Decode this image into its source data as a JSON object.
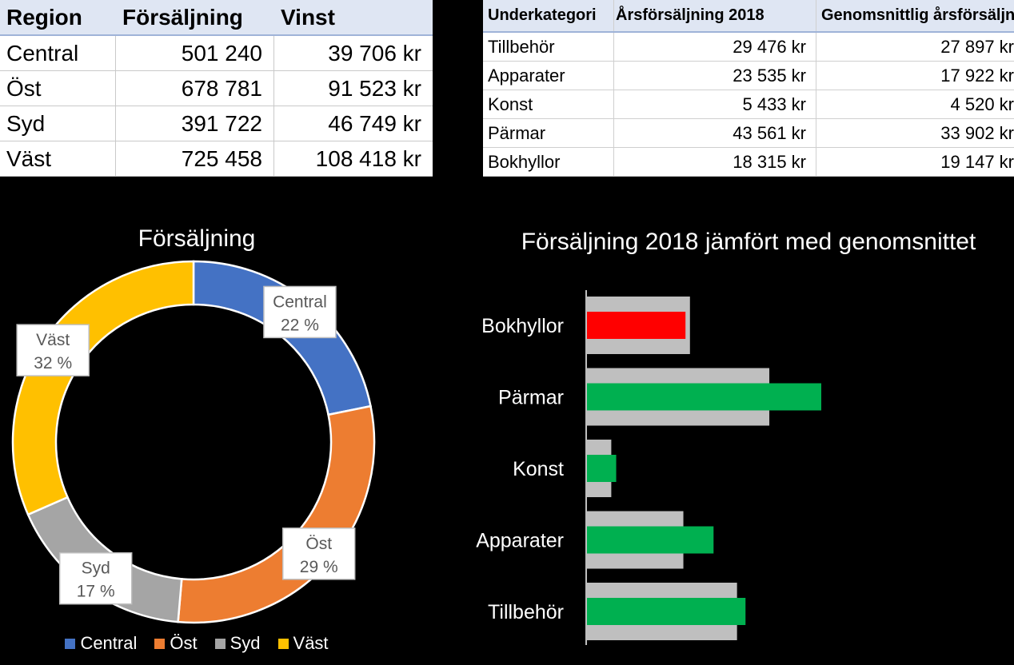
{
  "region_table": {
    "headers": [
      "Region",
      "Försäljning",
      "Vinst"
    ],
    "rows": [
      [
        "Central",
        "501 240",
        "39 706 kr"
      ],
      [
        "Öst",
        "678 781",
        "91 523 kr"
      ],
      [
        "Syd",
        "391 722",
        "46 749 kr"
      ],
      [
        "Väst",
        "725 458",
        "108 418 kr"
      ]
    ]
  },
  "category_table": {
    "headers": [
      "Underkategori",
      "Årsförsäljning 2018",
      "Genomsnittlig årsförsäljning"
    ],
    "rows": [
      [
        "Tillbehör",
        "29 476 kr",
        "27 897 kr"
      ],
      [
        "Apparater",
        "23 535 kr",
        "17 922 kr"
      ],
      [
        "Konst",
        "5 433 kr",
        "4 520 kr"
      ],
      [
        "Pärmar",
        "43 561 kr",
        "33 902 kr"
      ],
      [
        "Bokhyllor",
        "18 315 kr",
        "19 147 kr"
      ]
    ]
  },
  "chart_data": [
    {
      "type": "pie",
      "variant": "donut",
      "title": "Försäljning",
      "categories": [
        "Central",
        "Öst",
        "Syd",
        "Väst"
      ],
      "values": [
        501240,
        678781,
        391722,
        725458
      ],
      "labels": [
        "22 %",
        "29 %",
        "17 %",
        "32 %"
      ],
      "colors": [
        "#4472c4",
        "#ed7d31",
        "#a5a5a5",
        "#ffc000"
      ],
      "legend": "bottom"
    },
    {
      "type": "bar",
      "orientation": "horizontal",
      "title": "Försäljning 2018 jämfört med genomsnittet",
      "categories": [
        "Bokhyllor",
        "Pärmar",
        "Konst",
        "Apparater",
        "Tillbehör"
      ],
      "series": [
        {
          "values": [
            19147,
            33902,
            4520,
            17922,
            27897
          ],
          "color": "#bfbfbf"
        },
        {
          "values": [
            18315,
            43561,
            5433,
            23535,
            29476
          ]
        }
      ],
      "above_color": "#00b050",
      "below_color": "#ff0000",
      "xlim": [
        0,
        50000
      ],
      "grid": false,
      "legend": "none"
    }
  ]
}
